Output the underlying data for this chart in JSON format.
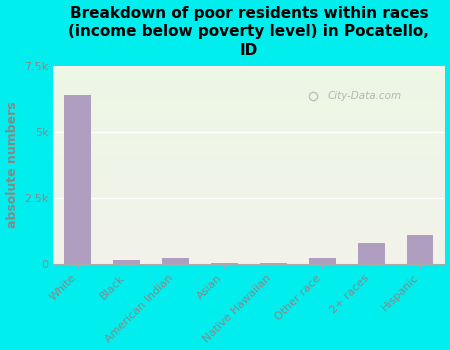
{
  "title": "Breakdown of poor residents within races\n(income below poverty level) in Pocatello,\nID",
  "categories": [
    "White",
    "Black",
    "American Indian",
    "Asian",
    "Native Hawaiian",
    "Other race",
    "2+ races",
    "Hispanic"
  ],
  "values": [
    6400,
    130,
    230,
    30,
    20,
    230,
    800,
    1100
  ],
  "bar_color": "#b09ec0",
  "ylabel": "absolute numbers",
  "ylim": [
    0,
    7500
  ],
  "yticks": [
    0,
    2500,
    5000,
    7500
  ],
  "ytick_labels": [
    "0",
    "2.5k",
    "5k",
    "7.5k"
  ],
  "background_color": "#00eeee",
  "plot_bg_color": "#e8f5e0",
  "grid_color": "#ffffff",
  "tick_color": "#888888",
  "watermark": "City-Data.com",
  "title_fontsize": 11,
  "ylabel_fontsize": 9,
  "tick_fontsize": 8
}
